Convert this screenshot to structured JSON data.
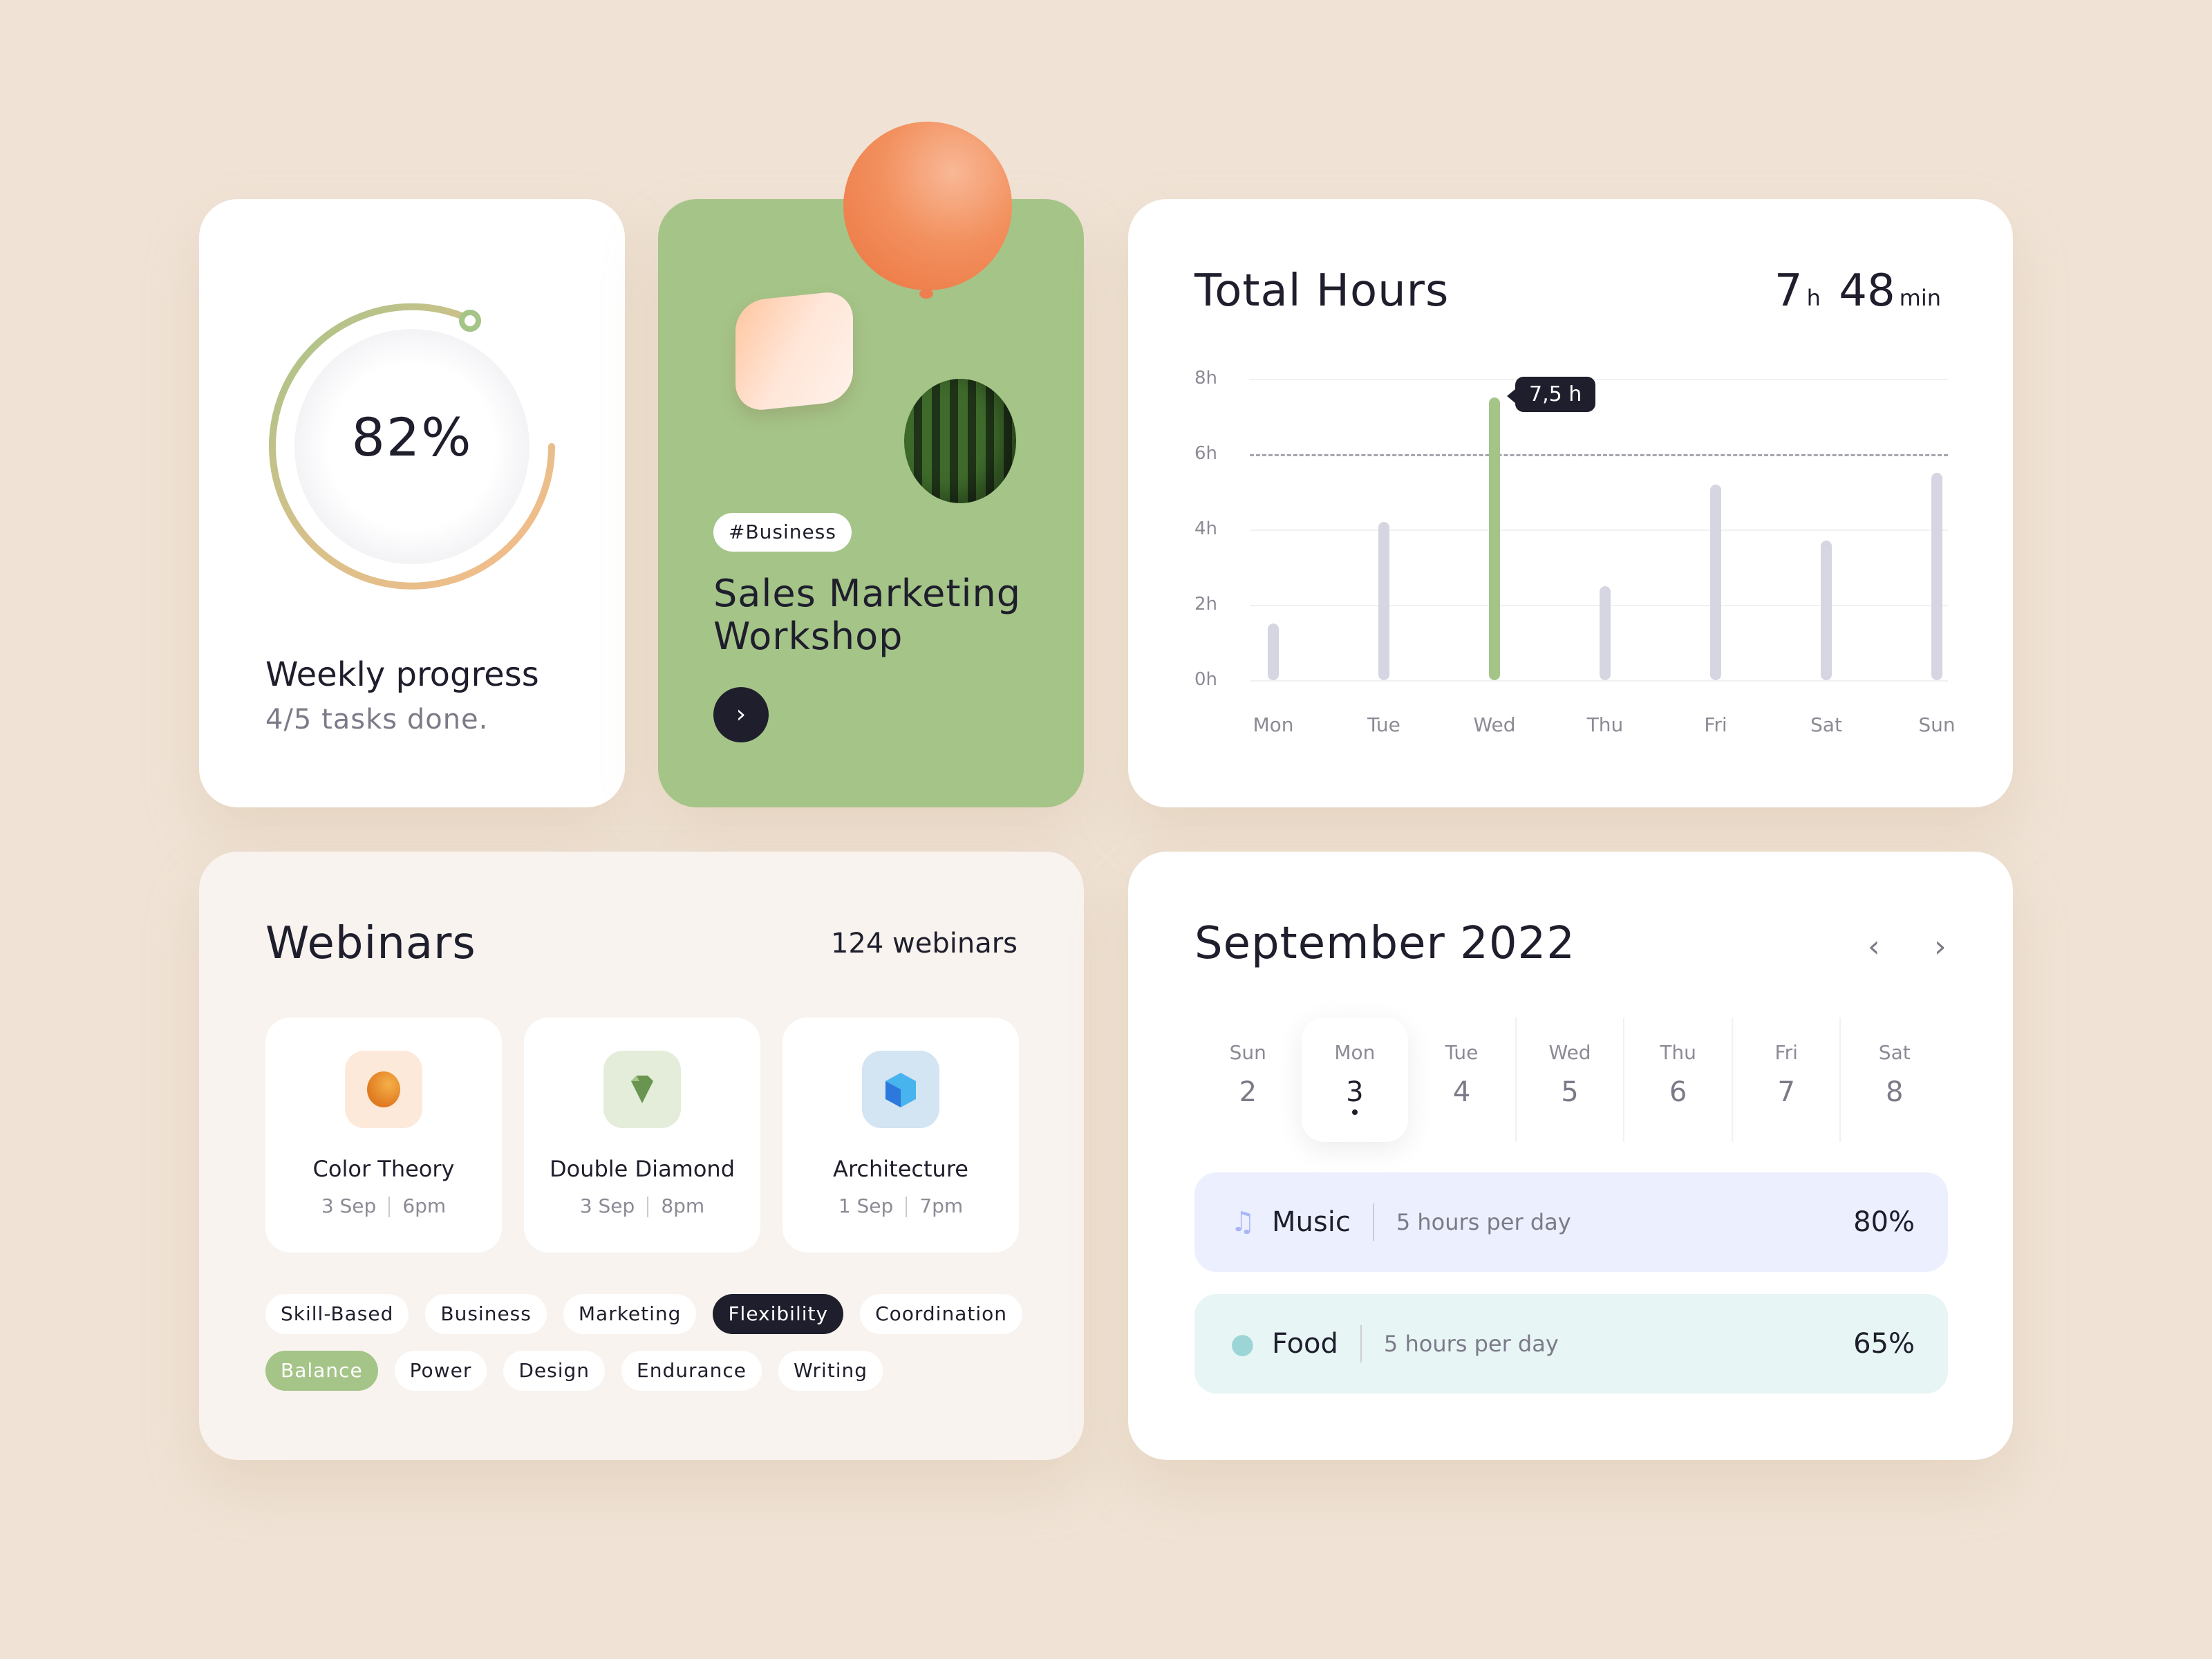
{
  "colors": {
    "background": "#F0E3D5",
    "accent_green": "#A5C488",
    "dark": "#1E1E2C",
    "bar_inactive": "#D5D6E1",
    "music_bg": "#ECEFFE",
    "food_bg": "#E8F5F5"
  },
  "progress": {
    "percent": "82%",
    "title": "Weekly progress",
    "subtitle": "4/5 tasks done."
  },
  "workshop": {
    "tag": "#Business",
    "title": "Sales Marketing Workshop",
    "button_icon": "chevron-right-icon",
    "button_glyph": "›"
  },
  "hours": {
    "title": "Total Hours",
    "total_h": "7",
    "h_unit": "h",
    "total_min": "48",
    "min_unit": "min",
    "tooltip": "7,5 h"
  },
  "chart_data": {
    "type": "bar",
    "title": "Total Hours",
    "categories": [
      "Mon",
      "Tue",
      "Wed",
      "Thu",
      "Fri",
      "Sat",
      "Sun"
    ],
    "values": [
      1.5,
      4.2,
      7.5,
      2.5,
      5.2,
      3.7,
      5.5
    ],
    "highlight": "Wed",
    "highlight_label": "7,5 h",
    "y_ticks": [
      "0h",
      "2h",
      "4h",
      "6h",
      "8h"
    ],
    "ylim": [
      0,
      8
    ],
    "reference_line": 6,
    "xlabel": "",
    "ylabel": "",
    "grid": true
  },
  "webinars": {
    "title": "Webinars",
    "count": "124 webinars",
    "items": [
      {
        "name": "Color Theory",
        "date": "3 Sep",
        "time": "6pm",
        "icon": "orange-sphere-icon"
      },
      {
        "name": "Double Diamond",
        "date": "3 Sep",
        "time": "8pm",
        "icon": "green-gem-icon"
      },
      {
        "name": "Architecture",
        "date": "1 Sep",
        "time": "7pm",
        "icon": "blue-cube-icon"
      }
    ],
    "chips_row1": [
      "Skill-Based",
      "Business",
      "Marketing",
      "Flexibility",
      "Coordination"
    ],
    "chips_row2": [
      "Balance",
      "Power",
      "Design",
      "Endurance",
      "Writing"
    ],
    "selected_dark": "Flexibility",
    "selected_green": "Balance"
  },
  "calendar": {
    "title": "September 2022",
    "prev": "‹",
    "next": "›",
    "days": [
      {
        "name": "Sun",
        "date": "2"
      },
      {
        "name": "Mon",
        "date": "3"
      },
      {
        "name": "Tue",
        "date": "4"
      },
      {
        "name": "Wed",
        "date": "5"
      },
      {
        "name": "Thu",
        "date": "6"
      },
      {
        "name": "Fri",
        "date": "7"
      },
      {
        "name": "Sat",
        "date": "8"
      }
    ],
    "selected_day": "Mon",
    "habits": [
      {
        "name": "Music",
        "desc": "5 hours per day",
        "value": "80%",
        "icon": "music-note-icon",
        "glyph": "♫"
      },
      {
        "name": "Food",
        "desc": "5 hours per day",
        "value": "65%",
        "icon": "apple-icon",
        "glyph": "●"
      }
    ]
  }
}
